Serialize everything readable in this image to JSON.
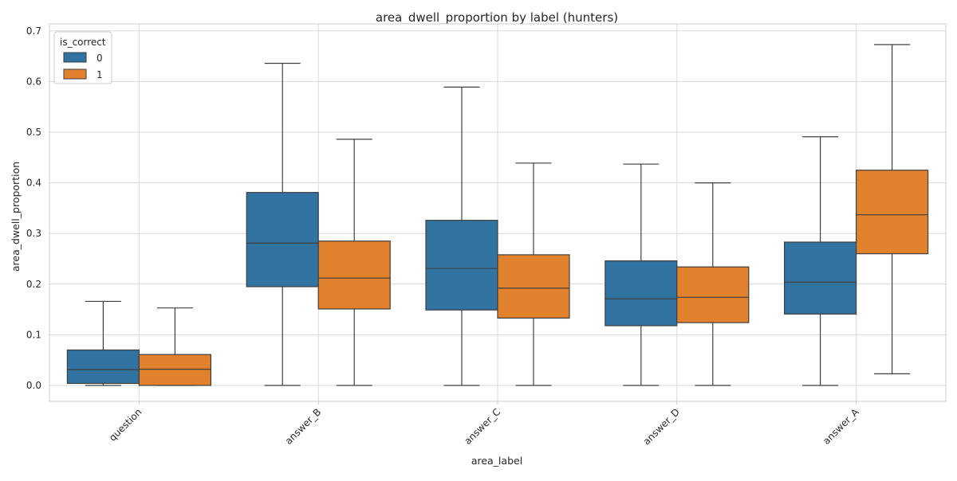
{
  "chart_data": {
    "type": "box",
    "title": "area_dwell_proportion by label (hunters)",
    "xlabel": "area_label",
    "ylabel": "area_dwell_proportion",
    "categories": [
      "question",
      "answer_B",
      "answer_C",
      "answer_D",
      "answer_A"
    ],
    "ylim": [
      -0.033,
      0.71
    ],
    "yticks": [
      "0.0",
      "0.1",
      "0.2",
      "0.3",
      "0.4",
      "0.5",
      "0.6",
      "0.7"
    ],
    "grid": true,
    "legend": {
      "title": "is_correct",
      "placement": "top-left"
    },
    "series": [
      {
        "name": "0",
        "color": "#3274a1",
        "boxes": [
          {
            "whislo": 0.0,
            "q1": 0.004,
            "med": 0.031,
            "q3": 0.07,
            "whishi": 0.166
          },
          {
            "whislo": 0.0,
            "q1": 0.195,
            "med": 0.281,
            "q3": 0.381,
            "whishi": 0.636
          },
          {
            "whislo": 0.0,
            "q1": 0.149,
            "med": 0.231,
            "q3": 0.326,
            "whishi": 0.589
          },
          {
            "whislo": 0.0,
            "q1": 0.118,
            "med": 0.171,
            "q3": 0.246,
            "whishi": 0.437
          },
          {
            "whislo": 0.0,
            "q1": 0.141,
            "med": 0.204,
            "q3": 0.283,
            "whishi": 0.491
          }
        ]
      },
      {
        "name": "1",
        "color": "#e1812c",
        "boxes": [
          {
            "whislo": 0.0,
            "q1": 0.0,
            "med": 0.032,
            "q3": 0.061,
            "whishi": 0.153
          },
          {
            "whislo": 0.0,
            "q1": 0.151,
            "med": 0.212,
            "q3": 0.285,
            "whishi": 0.486
          },
          {
            "whislo": 0.0,
            "q1": 0.133,
            "med": 0.192,
            "q3": 0.258,
            "whishi": 0.439
          },
          {
            "whislo": 0.0,
            "q1": 0.124,
            "med": 0.174,
            "q3": 0.234,
            "whishi": 0.4
          },
          {
            "whislo": 0.023,
            "q1": 0.26,
            "med": 0.337,
            "q3": 0.425,
            "whishi": 0.673
          }
        ]
      }
    ]
  }
}
